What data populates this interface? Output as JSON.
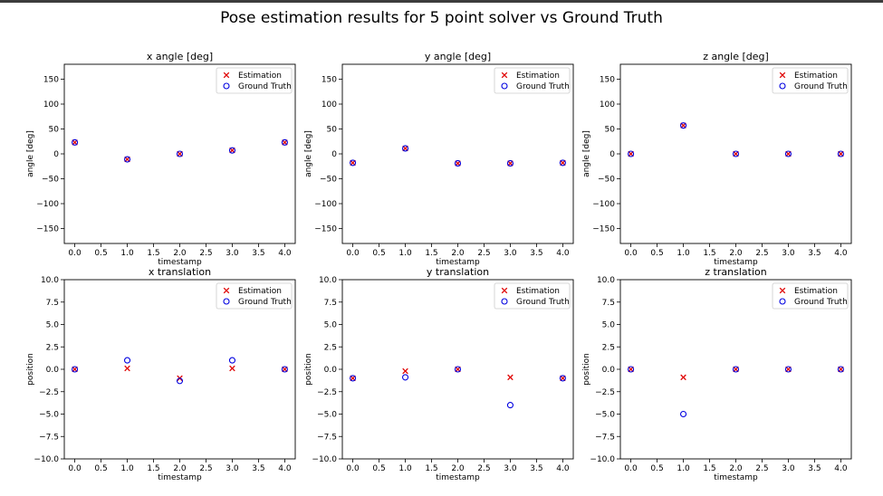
{
  "figure": {
    "suptitle": "Pose estimation results for 5 point solver vs Ground Truth"
  },
  "chart_data": [
    {
      "type": "scatter",
      "title": "x angle [deg]",
      "xlabel": "timestamp",
      "ylabel": "angle [deg]",
      "xlim": [
        -0.2,
        4.2
      ],
      "ylim": [
        -180,
        180
      ],
      "xticks": [
        0.0,
        0.5,
        1.0,
        1.5,
        2.0,
        2.5,
        3.0,
        3.5,
        4.0
      ],
      "yticks": [
        -150,
        -100,
        -50,
        0,
        50,
        100,
        150
      ],
      "legend": "top-right",
      "x": [
        0,
        1,
        2,
        3,
        4
      ],
      "series": [
        {
          "name": "Estimation",
          "marker": "x",
          "color": "#e00000",
          "values": [
            23,
            -11,
            0,
            7,
            23
          ]
        },
        {
          "name": "Ground Truth",
          "marker": "o",
          "color": "#0000e0",
          "values": [
            23,
            -11,
            0,
            7,
            23
          ]
        }
      ]
    },
    {
      "type": "scatter",
      "title": "y angle [deg]",
      "xlabel": "timestamp",
      "ylabel": "angle [deg]",
      "xlim": [
        -0.2,
        4.2
      ],
      "ylim": [
        -180,
        180
      ],
      "xticks": [
        0.0,
        0.5,
        1.0,
        1.5,
        2.0,
        2.5,
        3.0,
        3.5,
        4.0
      ],
      "yticks": [
        -150,
        -100,
        -50,
        0,
        50,
        100,
        150
      ],
      "legend": "top-right",
      "x": [
        0,
        1,
        2,
        3,
        4
      ],
      "series": [
        {
          "name": "Estimation",
          "marker": "x",
          "color": "#e00000",
          "values": [
            -18,
            11,
            -19,
            -19,
            -18
          ]
        },
        {
          "name": "Ground Truth",
          "marker": "o",
          "color": "#0000e0",
          "values": [
            -18,
            11,
            -19,
            -19,
            -18
          ]
        }
      ]
    },
    {
      "type": "scatter",
      "title": "z angle [deg]",
      "xlabel": "timestamp",
      "ylabel": "angle [deg]",
      "xlim": [
        -0.2,
        4.2
      ],
      "ylim": [
        -180,
        180
      ],
      "xticks": [
        0.0,
        0.5,
        1.0,
        1.5,
        2.0,
        2.5,
        3.0,
        3.5,
        4.0
      ],
      "yticks": [
        -150,
        -100,
        -50,
        0,
        50,
        100,
        150
      ],
      "legend": "top-right",
      "x": [
        0,
        1,
        2,
        3,
        4
      ],
      "series": [
        {
          "name": "Estimation",
          "marker": "x",
          "color": "#e00000",
          "values": [
            0,
            57,
            0,
            0,
            0
          ]
        },
        {
          "name": "Ground Truth",
          "marker": "o",
          "color": "#0000e0",
          "values": [
            0,
            57,
            0,
            0,
            0
          ]
        }
      ]
    },
    {
      "type": "scatter",
      "title": "x translation",
      "xlabel": "timestamp",
      "ylabel": "position",
      "xlim": [
        -0.2,
        4.2
      ],
      "ylim": [
        -10,
        10
      ],
      "xticks": [
        0.0,
        0.5,
        1.0,
        1.5,
        2.0,
        2.5,
        3.0,
        3.5,
        4.0
      ],
      "yticks": [
        -10.0,
        -7.5,
        -5.0,
        -2.5,
        0.0,
        2.5,
        5.0,
        7.5,
        10.0
      ],
      "legend": "top-right",
      "x": [
        0,
        1,
        2,
        3,
        4
      ],
      "series": [
        {
          "name": "Estimation",
          "marker": "x",
          "color": "#e00000",
          "values": [
            0,
            0.1,
            -1.0,
            0.1,
            0
          ]
        },
        {
          "name": "Ground Truth",
          "marker": "o",
          "color": "#0000e0",
          "values": [
            0,
            1.0,
            -1.3,
            1.0,
            0
          ]
        }
      ]
    },
    {
      "type": "scatter",
      "title": "y translation",
      "xlabel": "timestamp",
      "ylabel": "position",
      "xlim": [
        -0.2,
        4.2
      ],
      "ylim": [
        -10,
        10
      ],
      "xticks": [
        0.0,
        0.5,
        1.0,
        1.5,
        2.0,
        2.5,
        3.0,
        3.5,
        4.0
      ],
      "yticks": [
        -10.0,
        -7.5,
        -5.0,
        -2.5,
        0.0,
        2.5,
        5.0,
        7.5,
        10.0
      ],
      "legend": "top-right",
      "x": [
        0,
        1,
        2,
        3,
        4
      ],
      "series": [
        {
          "name": "Estimation",
          "marker": "x",
          "color": "#e00000",
          "values": [
            -1.0,
            -0.2,
            0,
            -0.9,
            -1.0
          ]
        },
        {
          "name": "Ground Truth",
          "marker": "o",
          "color": "#0000e0",
          "values": [
            -1.0,
            -0.9,
            0,
            -4.0,
            -1.0
          ]
        }
      ]
    },
    {
      "type": "scatter",
      "title": "z translation",
      "xlabel": "timestamp",
      "ylabel": "position",
      "xlim": [
        -0.2,
        4.2
      ],
      "ylim": [
        -10,
        10
      ],
      "xticks": [
        0.0,
        0.5,
        1.0,
        1.5,
        2.0,
        2.5,
        3.0,
        3.5,
        4.0
      ],
      "yticks": [
        -10.0,
        -7.5,
        -5.0,
        -2.5,
        0.0,
        2.5,
        5.0,
        7.5,
        10.0
      ],
      "legend": "top-right",
      "x": [
        0,
        1,
        2,
        3,
        4
      ],
      "series": [
        {
          "name": "Estimation",
          "marker": "x",
          "color": "#e00000",
          "values": [
            0,
            -0.9,
            0,
            0,
            0
          ]
        },
        {
          "name": "Ground Truth",
          "marker": "o",
          "color": "#0000e0",
          "values": [
            0,
            -5.0,
            0,
            0,
            0
          ]
        }
      ]
    }
  ]
}
